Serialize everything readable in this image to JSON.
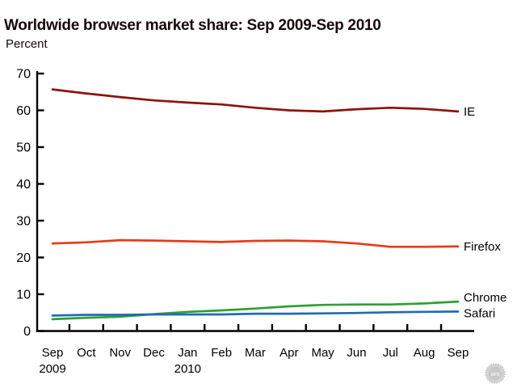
{
  "page": {
    "background": "#ffffff"
  },
  "watermark": {
    "label": "ars"
  },
  "chart_data": {
    "type": "line",
    "title": "Worldwide browser market share: Sep 2009-Sep 2010",
    "subtitle": "Percent",
    "categories": [
      "Sep",
      "Oct",
      "Nov",
      "Dec",
      "Jan",
      "Feb",
      "Mar",
      "Apr",
      "May",
      "Jun",
      "Jul",
      "Aug",
      "Sep"
    ],
    "year_labels": [
      {
        "index": 0,
        "text": "2009"
      },
      {
        "index": 4,
        "text": "2010"
      }
    ],
    "ylim": [
      0,
      70
    ],
    "ytick_step": 10,
    "grid": false,
    "legend_position": "right-end-labels",
    "axis_color": "#000000",
    "text_color": "#000000",
    "series": [
      {
        "name": "IE",
        "color": "#8e1309",
        "label_dy": 0,
        "values": [
          65.7,
          64.6,
          63.6,
          62.7,
          62.1,
          61.6,
          60.7,
          60.0,
          59.7,
          60.3,
          60.7,
          60.4,
          59.7
        ]
      },
      {
        "name": "Firefox",
        "color": "#e83b17",
        "label_dy": 0,
        "values": [
          23.8,
          24.1,
          24.7,
          24.6,
          24.4,
          24.2,
          24.5,
          24.6,
          24.4,
          23.8,
          22.9,
          22.9,
          23.0
        ]
      },
      {
        "name": "Chrome",
        "color": "#30a033",
        "label_dy": -5,
        "values": [
          3.2,
          3.6,
          3.9,
          4.6,
          5.2,
          5.6,
          6.1,
          6.7,
          7.1,
          7.2,
          7.2,
          7.5,
          8.0
        ]
      },
      {
        "name": "Safari",
        "color": "#1f6cb4",
        "label_dy": 2,
        "values": [
          4.2,
          4.4,
          4.4,
          4.5,
          4.5,
          4.5,
          4.7,
          4.7,
          4.8,
          4.9,
          5.1,
          5.2,
          5.3
        ]
      }
    ]
  }
}
